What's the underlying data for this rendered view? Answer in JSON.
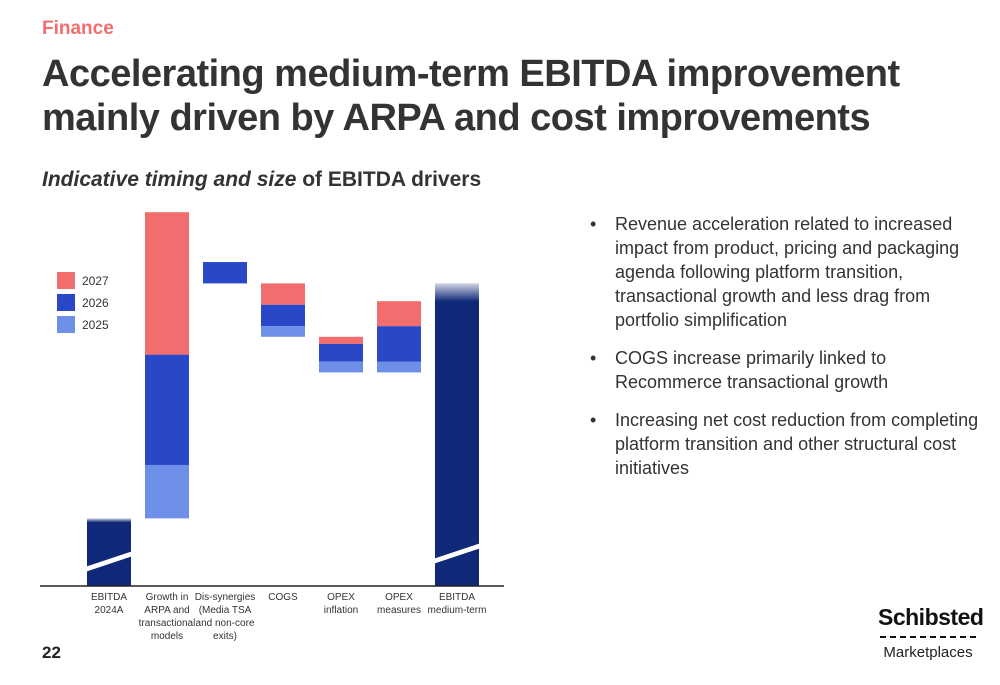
{
  "header": {
    "section": "Finance",
    "title_line1": "Accelerating medium-term EBITDA improvement",
    "title_line2": "mainly driven by ARPA and cost improvements"
  },
  "subtitle": {
    "italic": "Indicative timing and size",
    "rest": " of EBITDA drivers"
  },
  "chart_data": {
    "type": "bar",
    "subtype": "waterfall",
    "categories": [
      [
        "EBITDA",
        "2024A"
      ],
      [
        "Growth in",
        "ARPA and",
        "transactional",
        "models"
      ],
      [
        "Dis-synergies",
        "(Media TSA",
        "and non-core",
        "exits)"
      ],
      [
        "COGS"
      ],
      [
        "OPEX",
        "inflation"
      ],
      [
        "OPEX",
        "measures"
      ],
      [
        "EBITDA",
        "medium-term"
      ]
    ],
    "units": "indicative (no axis values shown)",
    "ylim": [
      0,
      100
    ],
    "grid": false,
    "legend_position": "top-left",
    "legend": [
      {
        "name": "2027",
        "color": "#f26e6e"
      },
      {
        "name": "2026",
        "color": "#2848c8"
      },
      {
        "name": "2025",
        "color": "#6e8fe8"
      }
    ],
    "bars": [
      {
        "kind": "total",
        "base": 0,
        "value": 19,
        "color": "#0f2878",
        "axis_break": true
      },
      {
        "kind": "increase",
        "base": 19,
        "segments": {
          "2025": 15,
          "2026": 31,
          "2027": 40
        }
      },
      {
        "kind": "decrease",
        "base": 91,
        "segments": {
          "2026": 6
        }
      },
      {
        "kind": "decrease",
        "base": 85,
        "segments": {
          "2025": 3,
          "2026": 6,
          "2027": 6
        }
      },
      {
        "kind": "decrease",
        "base": 70,
        "segments": {
          "2025": 3,
          "2026": 5,
          "2027": 2
        }
      },
      {
        "kind": "increase",
        "base": 60,
        "segments": {
          "2025": 3,
          "2026": 10,
          "2027": 7
        }
      },
      {
        "kind": "total",
        "base": 0,
        "value": 85,
        "color": "#0f2878",
        "axis_break": true
      }
    ]
  },
  "bullets": [
    "Revenue acceleration related to increased impact from product, pricing and packaging agenda following platform transition, transactional growth and less drag from portfolio simplification",
    "COGS increase primarily linked to Recommerce transactional growth",
    "Increasing net cost reduction from completing platform transition and other structural cost initiatives"
  ],
  "footer": {
    "page_number": "22",
    "logo_name": "Schibsted",
    "logo_sub": "Marketplaces"
  }
}
